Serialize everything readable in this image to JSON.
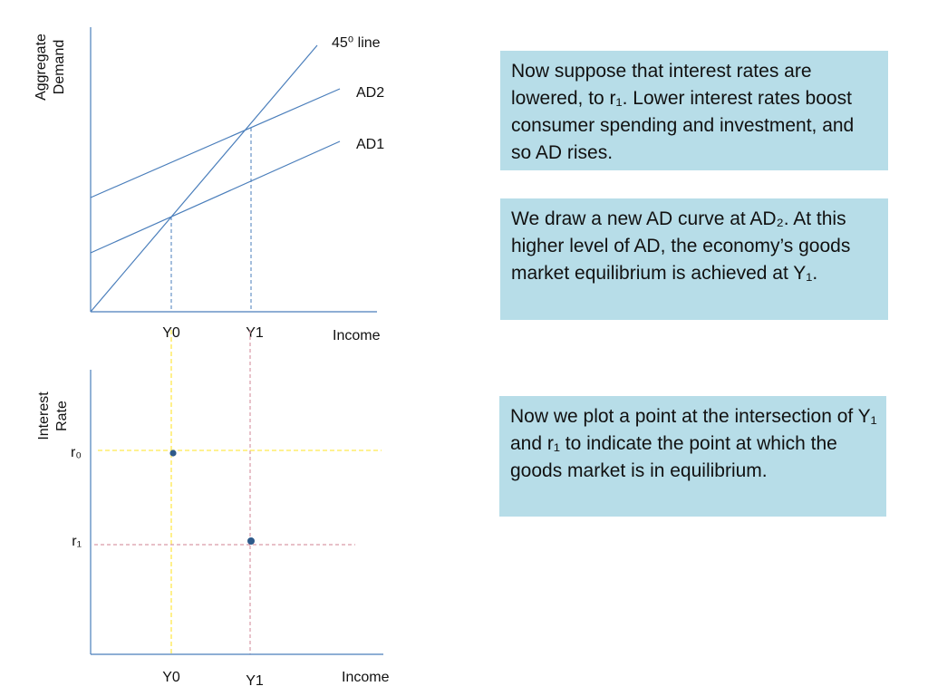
{
  "top_chart": {
    "y_axis_title": [
      "Aggregate",
      "Demand"
    ],
    "x_axis_title": "Income",
    "line_labels": {
      "line45": "45⁰ line",
      "ad2": "AD2",
      "ad1": "AD1"
    },
    "x_ticks": {
      "y0": "Y0",
      "y1": "Y1"
    }
  },
  "bottom_chart": {
    "y_axis_title": [
      "Interest",
      "Rate"
    ],
    "x_axis_title": "Income",
    "y_ticks": {
      "r0": "r₀",
      "r1": "r₁"
    },
    "x_ticks": {
      "y0": "Y0",
      "y1": "Y1"
    },
    "points": [
      "Y0, r0",
      "Y1, r1"
    ]
  },
  "notes": [
    "Now suppose that interest rates are lowered, to r₁. Lower interest rates boost consumer spending and investment, and so AD rises.",
    "We draw a new AD curve at AD₂. At this higher level of AD, the economy’s goods market equilibrium is achieved at Y₁.",
    "Now we plot a point at the intersection of Y₁ and r₁ to indicate the point at which the goods market is in equilibrium."
  ],
  "colors": {
    "line": "#4a7ebb",
    "guide_yellow": "#ffe94d",
    "guide_pink": "#d99aa6",
    "point": "#2e5a8a",
    "note_background": "#b7dde8"
  }
}
